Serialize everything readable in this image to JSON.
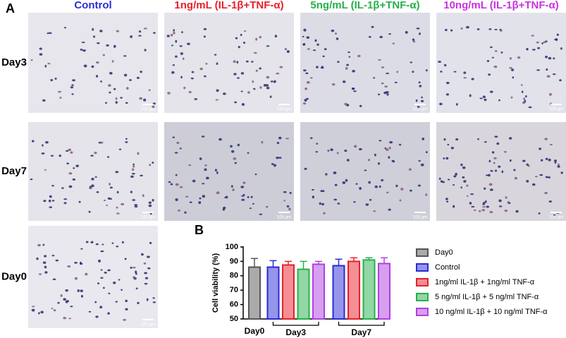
{
  "figure": {
    "panel_a": "A",
    "panel_b": "B",
    "columns": [
      {
        "label": "Control",
        "color": "#2b2bd6"
      },
      {
        "label": "1ng/mL (IL-1β+TNF-α)",
        "color": "#e8202a"
      },
      {
        "label": "5ng/mL (IL-1β+TNF-α)",
        "color": "#25b04c"
      },
      {
        "label": "10ng/mL (IL-1β+TNF-α)",
        "color": "#c832e0"
      }
    ],
    "rows": [
      "Day3",
      "Day7",
      "Day0"
    ],
    "scale_bar_label": "100 μm"
  },
  "chart_data": {
    "type": "bar",
    "ylabel": "Cell viability (%)",
    "categories": [
      "Day0",
      "Day3",
      "Day7"
    ],
    "ylim": [
      50,
      100
    ],
    "yticks": [
      50,
      60,
      70,
      80,
      90,
      100
    ],
    "series": [
      {
        "name": "Day0",
        "color": "#555555",
        "values": [
          86,
          null,
          null
        ],
        "errors": [
          6,
          null,
          null
        ]
      },
      {
        "name": "Control",
        "color": "#2b2bd6",
        "values": [
          null,
          86,
          87
        ],
        "errors": [
          null,
          4.5,
          4.5
        ]
      },
      {
        "name": "1ng/ml IL-1β + 1ng/ml TNF-α",
        "color": "#e8202a",
        "values": [
          null,
          87.5,
          90
        ],
        "errors": [
          null,
          2.5,
          2.5
        ]
      },
      {
        "name": "5 ng/ml IL-1β + 5 ng/ml TNF-α",
        "color": "#25b04c",
        "values": [
          null,
          84.5,
          91
        ],
        "errors": [
          null,
          5.5,
          1.5
        ]
      },
      {
        "name": "10 ng/ml IL-1β + 10 ng/ml TNF-α",
        "color": "#b040e0",
        "values": [
          null,
          88,
          88.5
        ],
        "errors": [
          null,
          2,
          4
        ]
      }
    ]
  }
}
